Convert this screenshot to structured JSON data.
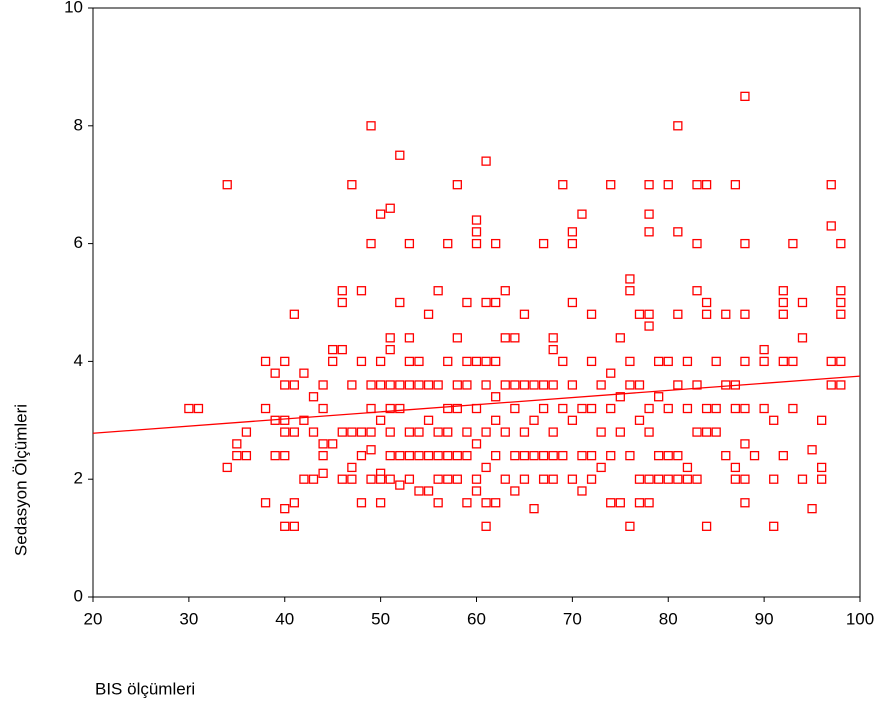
{
  "chart_data": {
    "type": "scatter",
    "xlabel": "BIS ölçümleri",
    "ylabel": "Sedasyon Ölçümleri",
    "xlim": [
      20,
      100
    ],
    "ylim": [
      0,
      10
    ],
    "xticks": [
      20,
      30,
      40,
      50,
      60,
      70,
      80,
      90,
      100
    ],
    "yticks": [
      0,
      2,
      4,
      6,
      8,
      10
    ],
    "color": "#ff0000",
    "x": [
      30,
      31,
      34,
      34,
      35,
      35,
      36,
      36,
      38,
      38,
      38,
      39,
      39,
      39,
      40,
      40,
      40,
      40,
      40,
      40,
      40,
      41,
      41,
      41,
      41,
      41,
      42,
      42,
      42,
      43,
      43,
      43,
      44,
      44,
      44,
      44,
      44,
      45,
      45,
      45,
      46,
      46,
      46,
      46,
      46,
      47,
      47,
      47,
      47,
      47,
      48,
      48,
      48,
      48,
      48,
      49,
      49,
      49,
      49,
      49,
      49,
      49,
      50,
      50,
      50,
      50,
      50,
      50,
      50,
      51,
      51,
      51,
      51,
      51,
      51,
      51,
      51,
      52,
      52,
      52,
      52,
      52,
      52,
      53,
      53,
      53,
      53,
      53,
      53,
      53,
      54,
      54,
      54,
      54,
      54,
      55,
      55,
      55,
      55,
      55,
      56,
      56,
      56,
      56,
      56,
      56,
      57,
      57,
      57,
      57,
      57,
      57,
      58,
      58,
      58,
      58,
      58,
      58,
      59,
      59,
      59,
      59,
      59,
      59,
      60,
      60,
      60,
      60,
      60,
      60,
      60,
      60,
      61,
      61,
      61,
      61,
      61,
      61,
      61,
      61,
      62,
      62,
      62,
      62,
      62,
      62,
      62,
      63,
      63,
      63,
      63,
      63,
      64,
      64,
      64,
      64,
      64,
      65,
      65,
      65,
      65,
      65,
      66,
      66,
      66,
      66,
      67,
      67,
      67,
      67,
      67,
      68,
      68,
      68,
      68,
      68,
      68,
      69,
      69,
      69,
      69,
      70,
      70,
      70,
      70,
      70,
      70,
      71,
      71,
      71,
      71,
      72,
      72,
      72,
      72,
      72,
      73,
      73,
      73,
      74,
      74,
      74,
      74,
      74,
      75,
      75,
      75,
      75,
      76,
      76,
      76,
      76,
      76,
      76,
      77,
      77,
      77,
      77,
      77,
      78,
      78,
      78,
      78,
      78,
      78,
      78,
      78,
      78,
      79,
      79,
      79,
      79,
      80,
      80,
      80,
      80,
      80,
      81,
      81,
      81,
      81,
      81,
      81,
      82,
      82,
      82,
      82,
      83,
      83,
      83,
      83,
      83,
      83,
      84,
      84,
      84,
      84,
      84,
      84,
      85,
      85,
      85,
      86,
      86,
      86,
      87,
      87,
      87,
      87,
      87,
      88,
      88,
      88,
      88,
      88,
      88,
      88,
      88,
      89,
      90,
      90,
      90,
      91,
      91,
      91,
      92,
      92,
      92,
      92,
      92,
      93,
      93,
      93,
      94,
      94,
      94,
      95,
      95,
      96,
      96,
      96,
      97,
      97,
      97,
      97,
      98,
      98,
      98,
      98,
      98,
      98
    ],
    "y": [
      3.2,
      3.2,
      7,
      2.2,
      2.6,
      2.4,
      2.4,
      2.8,
      4,
      3.2,
      1.6,
      3.8,
      3,
      2.4,
      4,
      3.6,
      3,
      2.8,
      2.4,
      1.5,
      1.2,
      4.8,
      3.6,
      2.8,
      1.6,
      1.2,
      3.8,
      3,
      2,
      3.4,
      2.8,
      2,
      3.6,
      3.2,
      2.6,
      2.4,
      2.1,
      4.2,
      4,
      2.6,
      5.2,
      5,
      4.2,
      2.8,
      2,
      7,
      3.6,
      2.8,
      2.2,
      2,
      5.2,
      4,
      2.8,
      2.4,
      1.6,
      8,
      6,
      3.6,
      3.2,
      2.8,
      2.5,
      2,
      6.5,
      4,
      3.6,
      3,
      2.1,
      2,
      1.6,
      6.6,
      4.4,
      4.2,
      3.6,
      3.2,
      2.8,
      2.4,
      2,
      7.5,
      5,
      3.6,
      3.2,
      2.4,
      1.9,
      6,
      4.4,
      4,
      3.6,
      2.8,
      2.4,
      2,
      4,
      3.6,
      2.8,
      2.4,
      1.8,
      4.8,
      3.6,
      3,
      2.4,
      1.8,
      5.2,
      3.6,
      2.8,
      2.4,
      2,
      1.6,
      6,
      4,
      3.2,
      2.8,
      2.4,
      2,
      7,
      4.4,
      3.6,
      3.2,
      2.4,
      2,
      5,
      4,
      3.6,
      2.8,
      2.4,
      1.6,
      6.4,
      6.2,
      6,
      4,
      3.2,
      2.6,
      2,
      1.8,
      7.4,
      5,
      4,
      3.6,
      2.8,
      2.2,
      1.6,
      1.2,
      6,
      5,
      4,
      3.4,
      3,
      2.4,
      1.6,
      5.2,
      4.4,
      3.6,
      2.8,
      2,
      4.4,
      3.6,
      3.2,
      2.4,
      1.8,
      4.8,
      3.6,
      2.8,
      2.4,
      2,
      3.6,
      3,
      2.4,
      1.5,
      6,
      3.6,
      3.2,
      2.4,
      2,
      4.4,
      4.2,
      3.6,
      2.8,
      2.4,
      2,
      7,
      4,
      3.2,
      2.4,
      6.2,
      6,
      5,
      3.6,
      3,
      2,
      6.5,
      3.2,
      2.4,
      1.8,
      4.8,
      4,
      3.2,
      2.4,
      2,
      3.6,
      2.8,
      2.2,
      7,
      3.8,
      3.2,
      2.4,
      1.6,
      4.4,
      3.4,
      2.8,
      1.6,
      5.4,
      5.2,
      4,
      3.6,
      2.4,
      1.2,
      4.8,
      3.6,
      3,
      2,
      1.6,
      7,
      6.5,
      6.2,
      4.8,
      4.6,
      3.2,
      2.8,
      2,
      1.6,
      4,
      3.4,
      2.4,
      2,
      7,
      4,
      3.2,
      2.4,
      2,
      8,
      6.2,
      4.8,
      3.6,
      2.4,
      2,
      4,
      3.2,
      2.2,
      2,
      7,
      6,
      5.2,
      3.6,
      2.8,
      2,
      7,
      5,
      4.8,
      3.2,
      2.8,
      1.2,
      4,
      3.2,
      2.8,
      4.8,
      3.6,
      2.4,
      7,
      3.6,
      3.2,
      2.2,
      2,
      8.5,
      6,
      4.8,
      4,
      3.2,
      2.6,
      2,
      1.6,
      2.4,
      4.2,
      4,
      3.2,
      3,
      2,
      1.2,
      5.2,
      5,
      4.8,
      4,
      2.4,
      6,
      4,
      3.2,
      5,
      4.4,
      2,
      2.5,
      1.5,
      3,
      2.2,
      2,
      7,
      6.3,
      4,
      3.6,
      6,
      5.2,
      5,
      4.8,
      4,
      3.6
    ],
    "fit": {
      "x": [
        20,
        100
      ],
      "y": [
        2.78,
        3.75
      ],
      "color": "#ff0000"
    }
  }
}
